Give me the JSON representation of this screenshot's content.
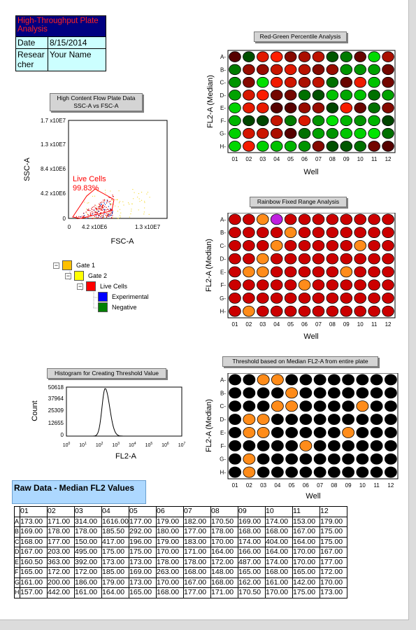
{
  "header": {
    "title": "High-Throughput Plate Analysis",
    "date_label": "Date",
    "date_value": "8/15/2014",
    "researcher_label": "Researcher",
    "researcher_value": "Your Name"
  },
  "flow_plot": {
    "title_line1": "High Content Flow Plate Data",
    "title_line2": "SSC-A vs FSC-A",
    "xlabel": "FSC-A",
    "ylabel": "SSC-A",
    "x_ticks": [
      "0",
      "4.2 x10E6",
      "1.3 x10E7"
    ],
    "y_ticks": [
      "0",
      "4.2 x10E6",
      "8.4 x10E6",
      "1.3 x10E7",
      "1.7 x10E7"
    ],
    "gate_label": "Live Cells",
    "gate_percent": "99.83%"
  },
  "gate_tree": {
    "items": [
      {
        "label": "Gate 1",
        "color": "#ffc000"
      },
      {
        "label": "Gate 2",
        "color": "#ffff00"
      },
      {
        "label": "Live Cells",
        "color": "#ff0000"
      },
      {
        "label": "Experimental",
        "color": "#0000ff"
      },
      {
        "label": "Negative",
        "color": "#008000"
      }
    ]
  },
  "histogram": {
    "title": "Histogram for Creating Threshold Value",
    "xlabel": "FL2-A",
    "ylabel": "Count",
    "y_ticks": [
      "0",
      "12655",
      "25309",
      "37964",
      "50618"
    ]
  },
  "plate_rg": {
    "title": "Red-Green Percentile Analysis",
    "xlabel": "Well",
    "ylabel": "FL2-A (Median)"
  },
  "plate_rainbow": {
    "title": "Rainbow Fixed Range Analysis",
    "xlabel": "Well",
    "ylabel": "FL2-A (Median)"
  },
  "plate_threshold": {
    "title": "Threshold based on Median FL2-A from entire plate",
    "xlabel": "Well",
    "ylabel": "FL2-A (Median)"
  },
  "raw_data": {
    "title": "Raw Data - Median FL2 Values",
    "columns": [
      "01",
      "02",
      "03",
      "04",
      "05",
      "06",
      "07",
      "08",
      "09",
      "10",
      "11",
      "12"
    ],
    "row_labels": [
      "A",
      "B",
      "C",
      "D",
      "E",
      "F",
      "G",
      "H"
    ],
    "rows": [
      [
        "173.00",
        "171.00",
        "314.00",
        "1616.00",
        "177.00",
        "179.00",
        "182.00",
        "170.50",
        "169.00",
        "174.00",
        "153.00",
        "179.00"
      ],
      [
        "169.00",
        "178.00",
        "178.00",
        "185.50",
        "292.00",
        "180.00",
        "177.00",
        "178.00",
        "168.00",
        "168.00",
        "167.00",
        "175.00"
      ],
      [
        "168.00",
        "177.00",
        "150.00",
        "417.00",
        "196.00",
        "179.00",
        "183.00",
        "170.00",
        "174.00",
        "404.00",
        "164.00",
        "175.00"
      ],
      [
        "167.00",
        "203.00",
        "495.00",
        "175.00",
        "175.00",
        "170.00",
        "171.00",
        "164.00",
        "166.00",
        "164.00",
        "170.00",
        "167.00"
      ],
      [
        "160.50",
        "363.00",
        "392.00",
        "173.00",
        "173.00",
        "178.00",
        "178.00",
        "172.00",
        "487.00",
        "174.00",
        "170.00",
        "177.00"
      ],
      [
        "165.00",
        "172.00",
        "172.00",
        "185.00",
        "169.00",
        "263.00",
        "168.00",
        "148.00",
        "165.00",
        "168.00",
        "165.00",
        "172.00"
      ],
      [
        "161.00",
        "200.00",
        "186.00",
        "179.00",
        "173.00",
        "170.00",
        "167.00",
        "168.00",
        "162.00",
        "161.00",
        "142.00",
        "170.00"
      ],
      [
        "157.00",
        "442.00",
        "161.00",
        "164.00",
        "165.00",
        "168.00",
        "177.00",
        "171.00",
        "170.50",
        "170.00",
        "175.00",
        "173.00"
      ]
    ]
  },
  "colors": {
    "threshold_hit": "#ff8c1a",
    "threshold_miss": "#000000",
    "rainbow_base": "#cc0000",
    "rainbow_mid": "#ff8c1a",
    "rainbow_high": "#c020e0"
  }
}
